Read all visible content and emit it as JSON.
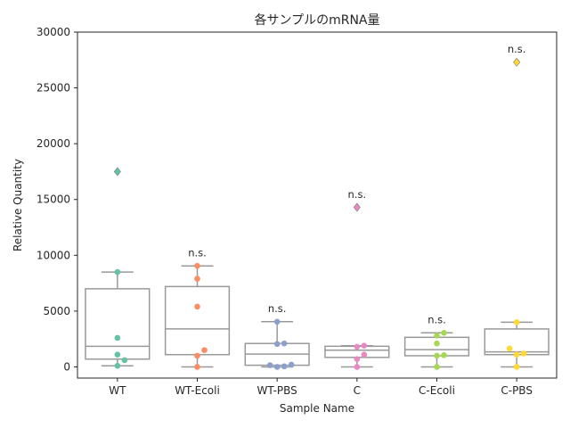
{
  "chart_data": {
    "type": "box",
    "title": "各サンプルのmRNA量",
    "xlabel": "Sample Name",
    "ylabel": "Relative Quantity",
    "ylim": [
      -1000,
      30000
    ],
    "yticks": [
      0,
      5000,
      10000,
      15000,
      20000,
      25000,
      30000
    ],
    "categories": [
      "WT",
      "WT-Ecoli",
      "WT-PBS",
      "C",
      "C-Ecoli",
      "C-PBS"
    ],
    "grid": false,
    "colors": [
      "#66c2a5",
      "#fc8d62",
      "#8da0cb",
      "#e78ac3",
      "#a6d854",
      "#ffd92f"
    ],
    "box_color": "#999999",
    "boxes": [
      {
        "category": "WT",
        "q1": 700,
        "median": 1850,
        "q3": 7000,
        "whisker_low": 100,
        "whisker_high": 8500,
        "outliers": [
          17500
        ],
        "points": [
          100,
          600,
          1100,
          2600,
          8500
        ]
      },
      {
        "category": "WT-Ecoli",
        "q1": 1100,
        "median": 3400,
        "q3": 7200,
        "whisker_low": 0,
        "whisker_high": 9050,
        "outliers": [],
        "points": [
          0,
          1000,
          1500,
          5400,
          7900,
          9050
        ]
      },
      {
        "category": "WT-PBS",
        "q1": 150,
        "median": 1150,
        "q3": 2100,
        "whisker_low": 0,
        "whisker_high": 4050,
        "outliers": [],
        "points": [
          0,
          50,
          150,
          200,
          2050,
          2100,
          4050
        ]
      },
      {
        "category": "C",
        "q1": 850,
        "median": 1500,
        "q3": 1850,
        "whisker_low": 0,
        "whisker_high": 1900,
        "outliers": [
          14300
        ],
        "points": [
          0,
          700,
          1100,
          1800,
          1900
        ]
      },
      {
        "category": "C-Ecoli",
        "q1": 1000,
        "median": 1550,
        "q3": 2650,
        "whisker_low": 0,
        "whisker_high": 3050,
        "outliers": [],
        "points": [
          0,
          1000,
          1050,
          2100,
          2800,
          3050
        ]
      },
      {
        "category": "C-PBS",
        "q1": 1100,
        "median": 1350,
        "q3": 3400,
        "whisker_low": 0,
        "whisker_high": 4000,
        "outliers": [
          27300
        ],
        "points": [
          0,
          1100,
          1200,
          1650,
          4000
        ]
      }
    ],
    "annotations": [
      {
        "category": "WT-Ecoli",
        "text": "n.s.",
        "y": 9900
      },
      {
        "category": "WT-PBS",
        "text": "n.s.",
        "y": 4900
      },
      {
        "category": "C",
        "text": "n.s.",
        "y": 15150
      },
      {
        "category": "C-Ecoli",
        "text": "n.s.",
        "y": 3900
      },
      {
        "category": "C-PBS",
        "text": "n.s.",
        "y": 28150
      }
    ]
  }
}
